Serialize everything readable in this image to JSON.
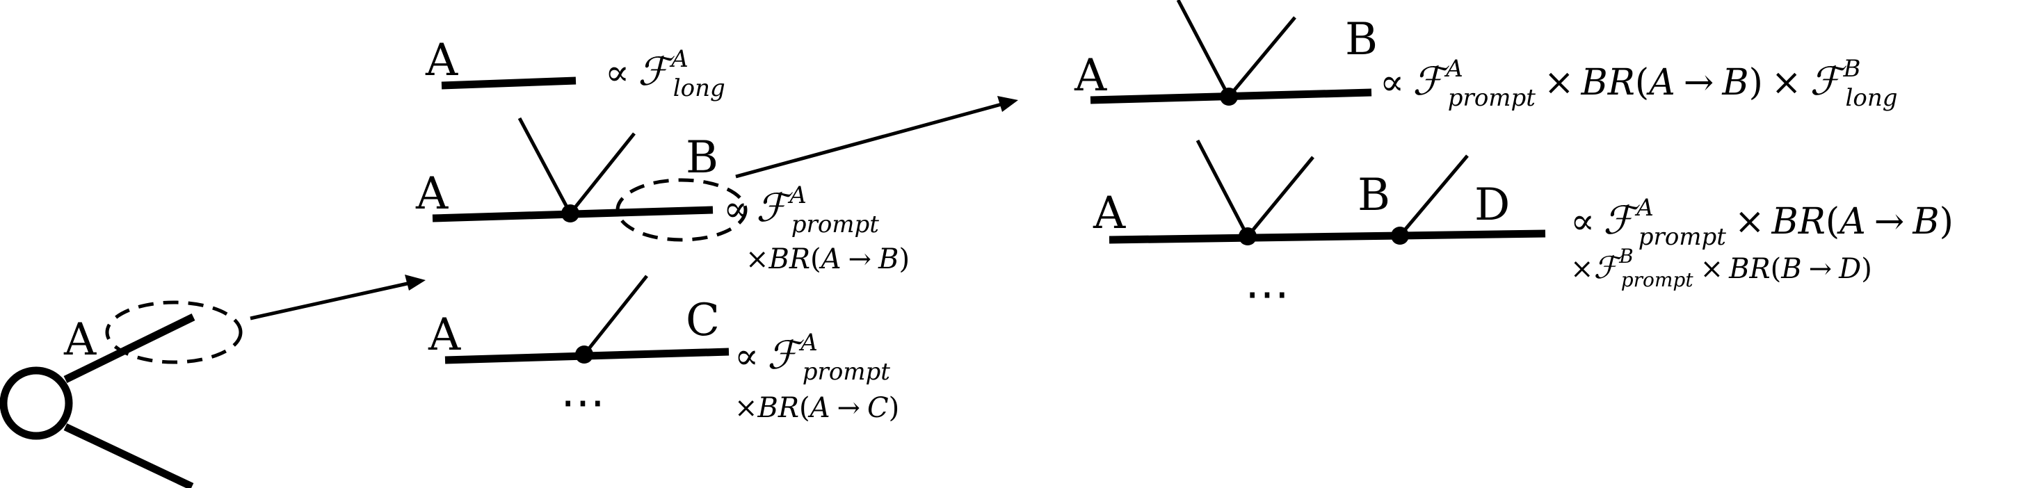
{
  "labels": {
    "origin_A": "A",
    "long_A": "A",
    "bb_A": "A",
    "bb_B": "B",
    "c_A": "A",
    "c_C": "C",
    "r1_A": "A",
    "r1_B": "B",
    "r2_A": "A",
    "r2_B": "B",
    "r2_D": "D",
    "dots_mid": "⋯",
    "dots_right": "⋯"
  },
  "formula_parts": {
    "prop": "∝",
    "times": "×",
    "F": "ℱ",
    "BR": "BR",
    "arrow": "→",
    "lparen": "(",
    "rparen": ")",
    "sup_A": "A",
    "sup_B": "B",
    "sub_long": "long",
    "sub_prompt": "prompt",
    "A": "A",
    "B": "B",
    "C": "C",
    "D": "D"
  }
}
